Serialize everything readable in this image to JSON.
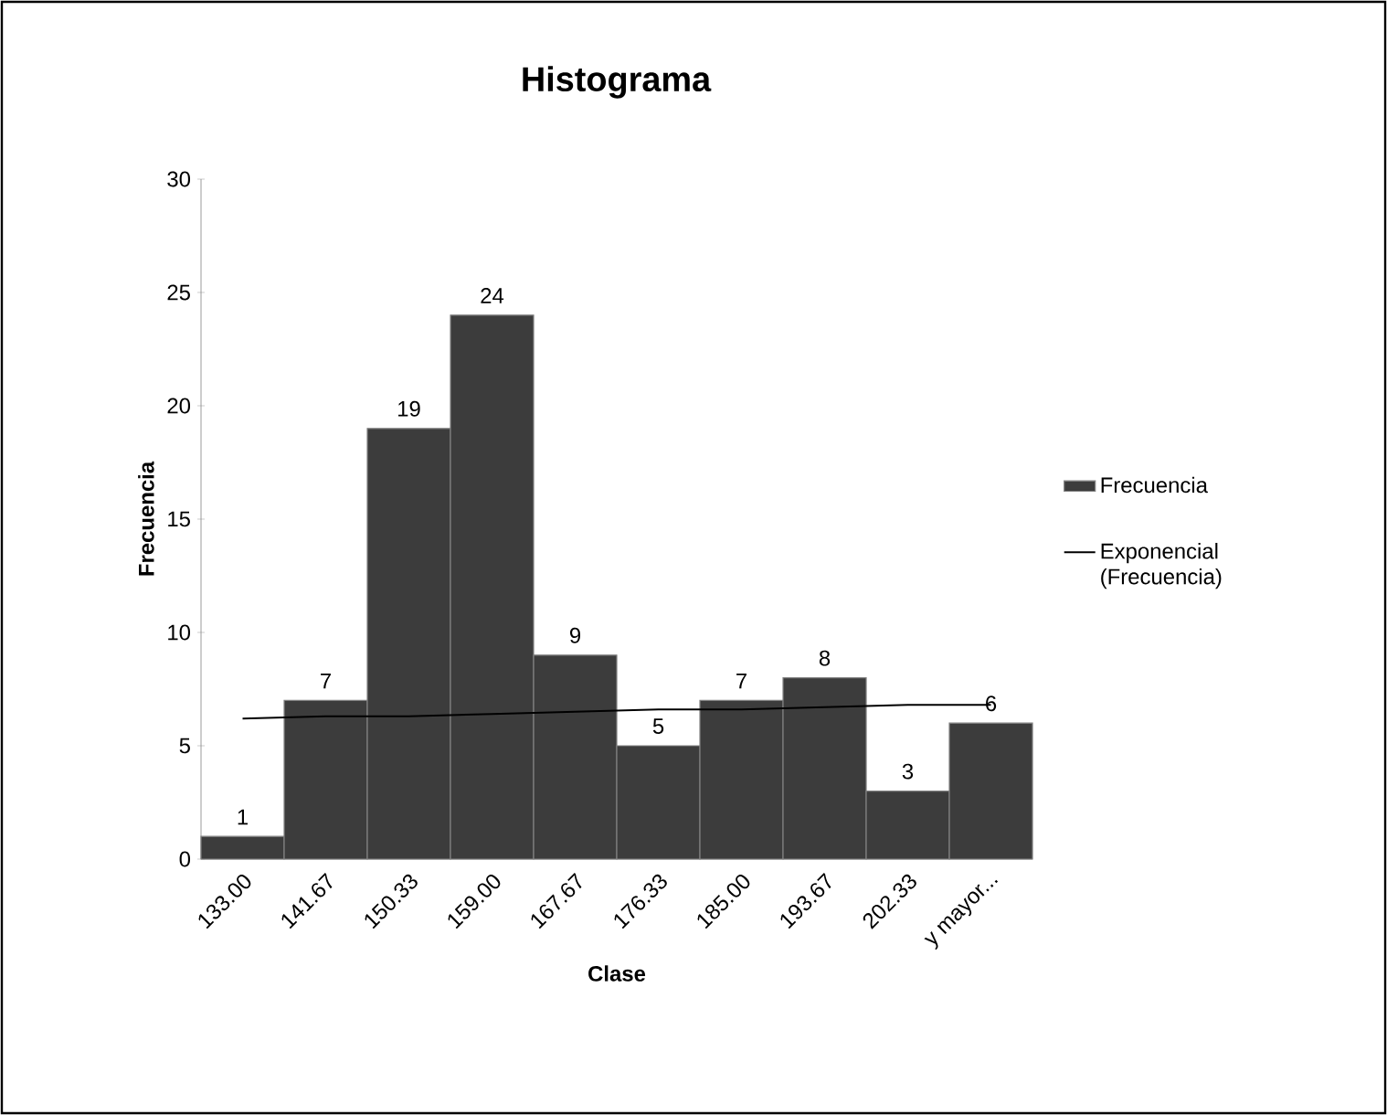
{
  "chart_data": {
    "type": "bar",
    "title": "Histograma",
    "xlabel": "Clase",
    "ylabel": "Frecuencia",
    "categories": [
      "133.00",
      "141.67",
      "150.33",
      "159.00",
      "167.67",
      "176.33",
      "185.00",
      "193.67",
      "202.33",
      "y mayor..."
    ],
    "series": [
      {
        "name": "Frecuencia",
        "color": "#3c3c3c",
        "values": [
          1,
          7,
          19,
          24,
          9,
          5,
          7,
          8,
          3,
          6
        ],
        "value_labels": [
          "1",
          "7",
          "19",
          "24",
          "9",
          "5",
          "7",
          "8",
          "3",
          "6"
        ]
      },
      {
        "name": "Exponencial (Frecuencia)",
        "type": "line",
        "color": "#000000",
        "values": [
          6.2,
          6.3,
          6.3,
          6.4,
          6.5,
          6.6,
          6.6,
          6.7,
          6.8,
          6.8
        ]
      }
    ],
    "ylim": [
      0,
      30
    ],
    "yticks": [
      0,
      5,
      10,
      15,
      20,
      25,
      30
    ],
    "legend": "right",
    "grid": false
  }
}
